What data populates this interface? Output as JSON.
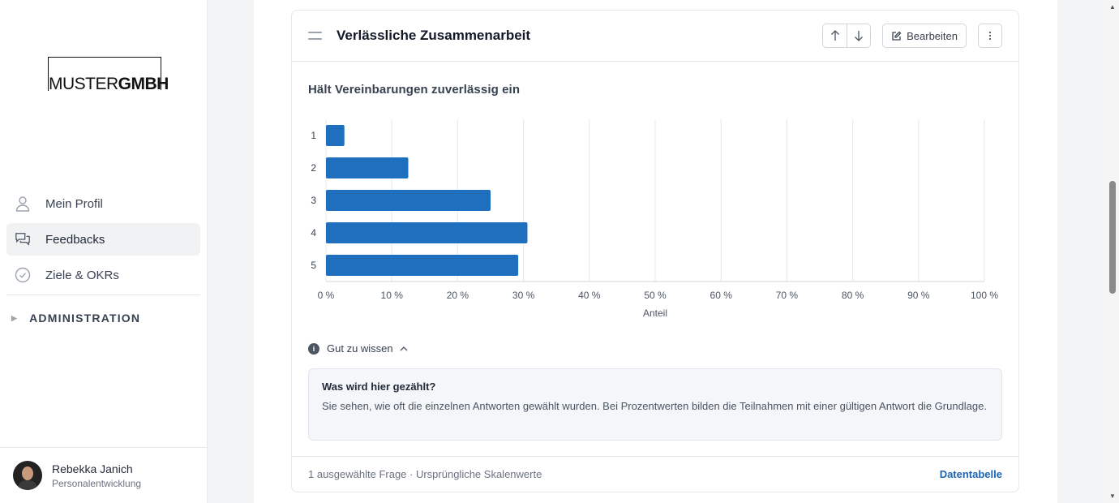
{
  "brand": {
    "logo_left": "MUSTER",
    "logo_right": "GMBH"
  },
  "sidebar": {
    "items": [
      {
        "label": "Mein Profil",
        "icon": "user-icon",
        "active": false
      },
      {
        "label": "Feedbacks",
        "icon": "chat-icon",
        "active": true
      },
      {
        "label": "Ziele & OKRs",
        "icon": "check-circle-icon",
        "active": false
      }
    ],
    "admin_label": "ADMINISTRATION"
  },
  "user": {
    "name": "Rebekka Janich",
    "role": "Personalentwicklung"
  },
  "card": {
    "title": "Verlässliche Zusammenarbeit",
    "edit_label": "Bearbeiten",
    "question": "Hält Vereinbarungen zuverlässig ein",
    "info_toggle": "Gut zu wissen",
    "info_title": "Was wird hier gezählt?",
    "info_text": "Sie sehen, wie oft die einzelnen Antworten gewählt wurden. Bei Prozentwerten bilden die Teilnahmen mit einer gültigen Antwort die Grundlage.",
    "footer_text": "1 ausgewählte Frage · Ursprüngliche Skalenwerte",
    "footer_link": "Datentabelle"
  },
  "chart_data": {
    "type": "bar",
    "orientation": "horizontal",
    "categories": [
      "1",
      "2",
      "3",
      "4",
      "5"
    ],
    "values": [
      2.8,
      12.5,
      25.0,
      30.6,
      29.2
    ],
    "xlabel": "Anteil",
    "ylabel": "",
    "xlim": [
      0,
      100
    ],
    "xticks": [
      "0 %",
      "10 %",
      "20 %",
      "30 %",
      "40 %",
      "50 %",
      "60 %",
      "70 %",
      "80 %",
      "90 %",
      "100 %"
    ],
    "grid": true,
    "bar_color": "#1f6fbf"
  }
}
